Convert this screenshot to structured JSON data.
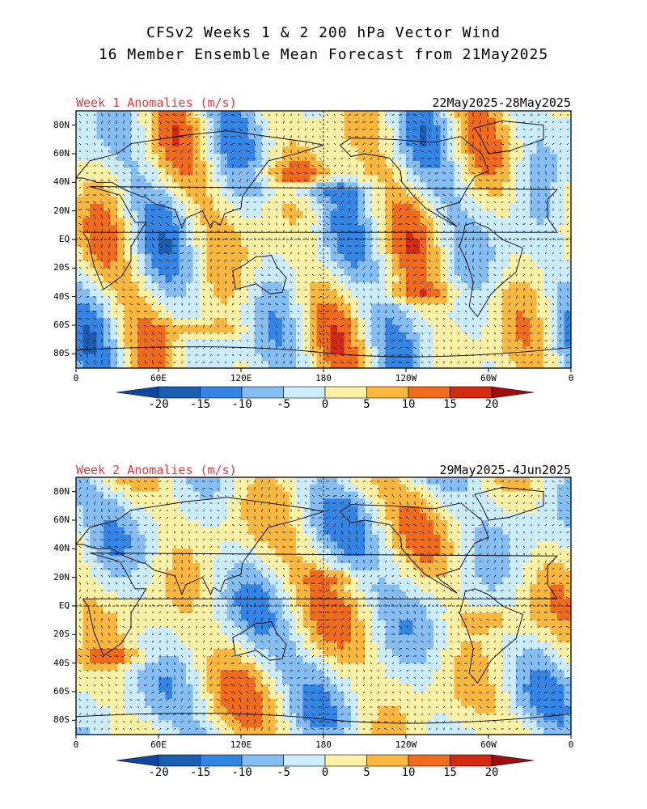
{
  "title_line1": "CFSv2 Weeks 1 & 2 200 hPa Vector Wind",
  "title_line2": "16 Member Ensemble Mean Forecast from 21May2025",
  "panels": [
    {
      "label": "Week 1 Anomalies (m/s)",
      "dates": "22May2025-28May2025",
      "lat_labels": [
        "80N",
        "60N",
        "40N",
        "20N",
        "EQ",
        "20S",
        "40S",
        "60S",
        "80S"
      ],
      "lon_labels": [
        "0",
        "60E",
        "120E",
        "180",
        "120W",
        "60W",
        "0"
      ],
      "colorbar_labels": [
        "-20",
        "-15",
        "-10",
        "-5",
        "0",
        "5",
        "10",
        "15",
        "20"
      ]
    },
    {
      "label": "Week 2 Anomalies (m/s)",
      "dates": "29May2025-4Jun2025",
      "lat_labels": [
        "80N",
        "60N",
        "40N",
        "20N",
        "EQ",
        "20S",
        "40S",
        "60S",
        "80S"
      ],
      "lon_labels": [
        "0",
        "60E",
        "120E",
        "180",
        "120W",
        "60W",
        "0"
      ],
      "colorbar_labels": [
        "-20",
        "-15",
        "-10",
        "-5",
        "0",
        "5",
        "10",
        "15",
        "20"
      ]
    }
  ],
  "colors": {
    "neg20": "#1a5fb4",
    "neg15": "#3385e6",
    "neg10": "#85bdf5",
    "neg5": "#ccecff",
    "zero": "#ffffff",
    "pos5": "#fff1a6",
    "pos10": "#ffb83d",
    "pos15": "#f26a1b",
    "pos20": "#d42a12",
    "pos_max": "#a10d0d",
    "neg_max": "#0d47a1"
  }
}
